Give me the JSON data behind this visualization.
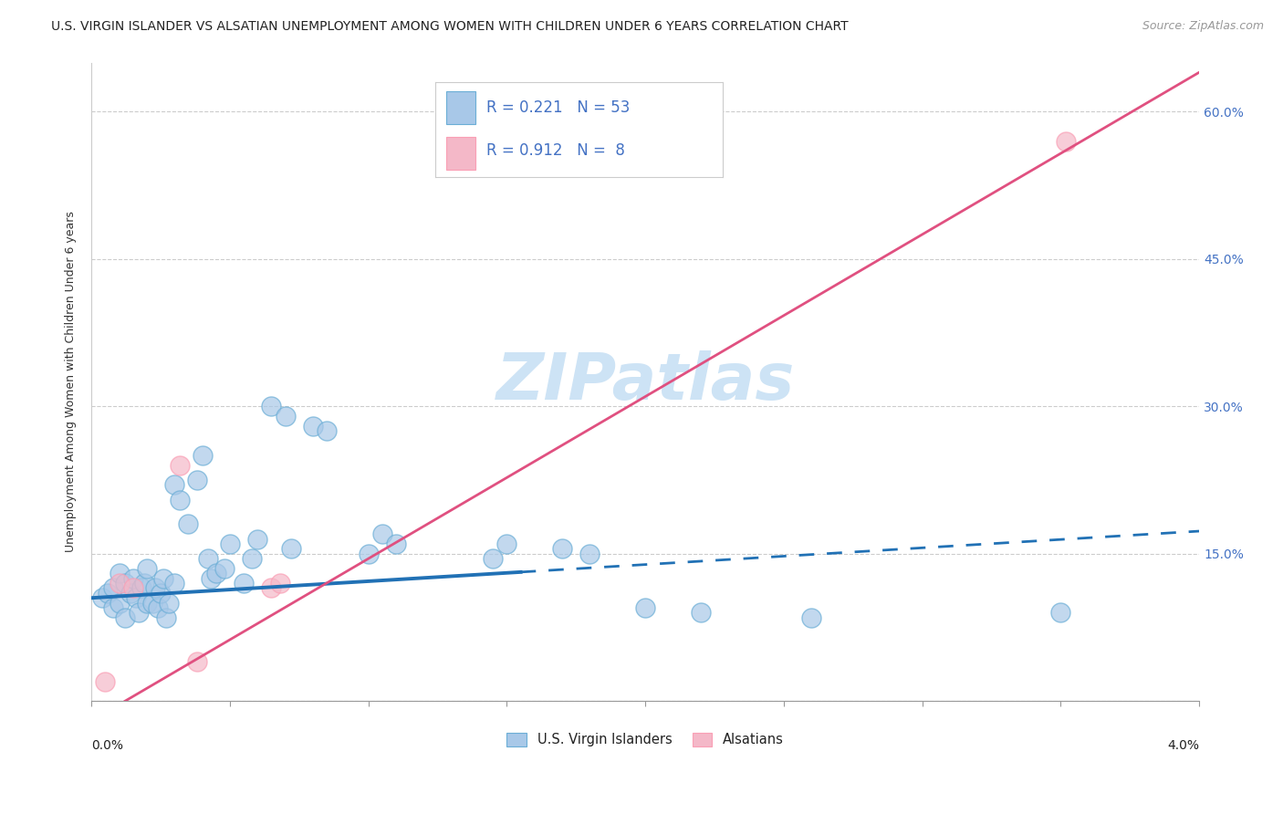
{
  "title": "U.S. VIRGIN ISLANDER VS ALSATIAN UNEMPLOYMENT AMONG WOMEN WITH CHILDREN UNDER 6 YEARS CORRELATION CHART",
  "source": "Source: ZipAtlas.com",
  "ylabel": "Unemployment Among Women with Children Under 6 years",
  "xlim": [
    0.0,
    4.0
  ],
  "ylim": [
    0.0,
    65.0
  ],
  "right_yticklabels": [
    "",
    "15.0%",
    "30.0%",
    "45.0%",
    "60.0%"
  ],
  "watermark": "ZIPatlas",
  "legend_line1": "R = 0.221   N = 53",
  "legend_line2": "R = 0.912   N =  8",
  "blue_color": "#a8c8e8",
  "blue_edge_color": "#6baed6",
  "pink_color": "#f4b8c8",
  "pink_edge_color": "#fa9fb5",
  "blue_line_color": "#2171b5",
  "pink_line_color": "#e05080",
  "blue_scatter_x": [
    0.04,
    0.06,
    0.08,
    0.08,
    0.1,
    0.1,
    0.12,
    0.12,
    0.14,
    0.15,
    0.16,
    0.17,
    0.18,
    0.19,
    0.2,
    0.2,
    0.22,
    0.23,
    0.24,
    0.25,
    0.26,
    0.27,
    0.28,
    0.3,
    0.3,
    0.32,
    0.35,
    0.38,
    0.4,
    0.42,
    0.43,
    0.45,
    0.48,
    0.5,
    0.55,
    0.58,
    0.6,
    0.65,
    0.7,
    0.72,
    0.8,
    0.85,
    1.0,
    1.05,
    1.1,
    1.45,
    1.5,
    1.7,
    1.8,
    2.0,
    2.2,
    2.6,
    3.5
  ],
  "blue_scatter_y": [
    10.5,
    11.0,
    11.5,
    9.5,
    13.0,
    10.0,
    12.0,
    8.5,
    11.0,
    12.5,
    10.5,
    9.0,
    11.5,
    12.0,
    13.5,
    10.0,
    10.0,
    11.5,
    9.5,
    11.0,
    12.5,
    8.5,
    10.0,
    12.0,
    22.0,
    20.5,
    18.0,
    22.5,
    25.0,
    14.5,
    12.5,
    13.0,
    13.5,
    16.0,
    12.0,
    14.5,
    16.5,
    30.0,
    29.0,
    15.5,
    28.0,
    27.5,
    15.0,
    17.0,
    16.0,
    14.5,
    16.0,
    15.5,
    15.0,
    9.5,
    9.0,
    8.5,
    9.0
  ],
  "pink_scatter_x": [
    0.05,
    0.1,
    0.15,
    0.32,
    0.38,
    0.65,
    0.68,
    3.52
  ],
  "pink_scatter_y": [
    2.0,
    12.0,
    11.5,
    24.0,
    4.0,
    11.5,
    12.0,
    57.0
  ],
  "blue_trend_intercept": 10.5,
  "blue_trend_slope": 1.7,
  "blue_solid_end_x": 1.55,
  "pink_trend_intercept": -2.0,
  "pink_trend_slope": 16.5,
  "title_fontsize": 10,
  "source_fontsize": 9,
  "axis_label_fontsize": 9,
  "tick_fontsize": 10,
  "legend_fontsize": 12,
  "watermark_fontsize": 52,
  "watermark_color": "#cde3f5",
  "background_color": "#ffffff",
  "grid_color": "#cccccc",
  "scatter_size": 230
}
